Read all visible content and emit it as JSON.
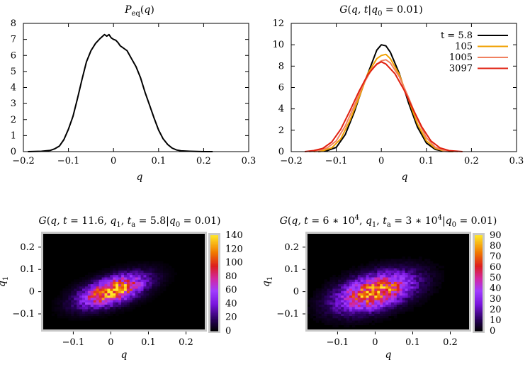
{
  "chart_data": [
    {
      "type": "line",
      "title": "P_eq(q)",
      "xlabel": "q",
      "ylabel": "",
      "xlim": [
        -0.2,
        0.3
      ],
      "ylim": [
        0,
        8
      ],
      "xticks": [
        "−0.2",
        "−0.1",
        "0",
        "0.1",
        "0.2",
        "0.3"
      ],
      "yticks": [
        "0",
        "1",
        "2",
        "3",
        "4",
        "5",
        "6",
        "7",
        "8"
      ],
      "grid": false,
      "series": [
        {
          "color": "#000000",
          "x": [
            -0.19,
            -0.16,
            -0.14,
            -0.13,
            -0.12,
            -0.11,
            -0.1,
            -0.09,
            -0.08,
            -0.07,
            -0.06,
            -0.05,
            -0.04,
            -0.03,
            -0.02,
            -0.015,
            -0.01,
            -0.005,
            0,
            0.005,
            0.01,
            0.015,
            0.02,
            0.03,
            0.04,
            0.05,
            0.06,
            0.07,
            0.08,
            0.09,
            0.1,
            0.11,
            0.12,
            0.13,
            0.14,
            0.15,
            0.17,
            0.2,
            0.22
          ],
          "y": [
            0,
            0.02,
            0.08,
            0.18,
            0.35,
            0.75,
            1.4,
            2.2,
            3.3,
            4.5,
            5.6,
            6.3,
            6.75,
            7.05,
            7.3,
            7.2,
            7.3,
            7.1,
            7.0,
            6.95,
            6.8,
            6.6,
            6.5,
            6.3,
            5.8,
            5.3,
            4.6,
            3.7,
            2.9,
            2.1,
            1.35,
            0.8,
            0.45,
            0.22,
            0.1,
            0.05,
            0.02,
            0,
            0
          ]
        }
      ]
    },
    {
      "type": "line",
      "title": "G(q,t|q_0 = 0.01)",
      "xlabel": "q",
      "ylabel": "",
      "xlim": [
        -0.2,
        0.3
      ],
      "ylim": [
        0,
        12
      ],
      "xticks": [
        "−0.2",
        "−0.1",
        "0",
        "0.1",
        "0.2",
        "0.3"
      ],
      "yticks": [
        "0",
        "2",
        "4",
        "6",
        "8",
        "10",
        "12"
      ],
      "legend": "top-right",
      "grid": false,
      "series": [
        {
          "name": "t = 5.8",
          "color": "#000000",
          "x": [
            -0.14,
            -0.12,
            -0.1,
            -0.08,
            -0.06,
            -0.04,
            -0.02,
            -0.01,
            0,
            0.01,
            0.02,
            0.04,
            0.06,
            0.08,
            0.1,
            0.12,
            0.14,
            0.16
          ],
          "y": [
            0,
            0.1,
            0.4,
            1.6,
            3.7,
            6.2,
            8.4,
            9.5,
            10.0,
            9.9,
            9.3,
            7.3,
            4.6,
            2.3,
            0.8,
            0.2,
            0.03,
            0
          ]
        },
        {
          "name": "105",
          "color": "#f0a000",
          "x": [
            -0.15,
            -0.13,
            -0.11,
            -0.09,
            -0.07,
            -0.05,
            -0.03,
            -0.01,
            0,
            0.01,
            0.02,
            0.04,
            0.06,
            0.08,
            0.1,
            0.12,
            0.14,
            0.16
          ],
          "y": [
            0,
            0.08,
            0.35,
            1.2,
            2.9,
            5.0,
            7.3,
            8.7,
            9.0,
            9.1,
            8.7,
            7.2,
            4.9,
            2.6,
            1.0,
            0.3,
            0.06,
            0
          ]
        },
        {
          "name": "1005",
          "color": "#f08060",
          "x": [
            -0.16,
            -0.14,
            -0.12,
            -0.1,
            -0.08,
            -0.06,
            -0.04,
            -0.02,
            0,
            0.01,
            0.02,
            0.04,
            0.06,
            0.08,
            0.1,
            0.12,
            0.14,
            0.17
          ],
          "y": [
            0,
            0.1,
            0.35,
            1.0,
            2.4,
            4.3,
            6.3,
            7.8,
            8.5,
            8.6,
            8.3,
            7.0,
            5.1,
            3.0,
            1.3,
            0.4,
            0.1,
            0
          ]
        },
        {
          "name": "3097",
          "color": "#e02010",
          "x": [
            -0.17,
            -0.15,
            -0.13,
            -0.11,
            -0.09,
            -0.07,
            -0.05,
            -0.03,
            -0.01,
            0,
            0.01,
            0.03,
            0.05,
            0.07,
            0.09,
            0.11,
            0.13,
            0.15,
            0.18
          ],
          "y": [
            0,
            0.1,
            0.3,
            0.9,
            2.1,
            3.8,
            5.6,
            7.2,
            8.2,
            8.4,
            8.2,
            7.3,
            5.8,
            4.0,
            2.3,
            1.0,
            0.35,
            0.1,
            0
          ]
        }
      ]
    },
    {
      "type": "heatmap",
      "title": "G(q, t = 11.6, q_1, t_a = 5.8|q_0 = 0.01)",
      "xlabel": "q",
      "ylabel": "q_1",
      "xlim": [
        -0.18,
        0.25
      ],
      "ylim": [
        -0.17,
        0.26
      ],
      "xticks": [
        "−0.1",
        "0",
        "0.1",
        "0.2"
      ],
      "yticks": [
        "−0.1",
        "0",
        "0.1",
        "0.2"
      ],
      "colorbar_ticks": [
        "0",
        "20",
        "40",
        "60",
        "80",
        "100",
        "120",
        "140"
      ],
      "colorbar_range": [
        0,
        140
      ],
      "peak_value": 130,
      "center": [
        0.005,
        0.005
      ],
      "sigma": [
        0.055,
        0.045
      ],
      "rho": 0.55
    },
    {
      "type": "heatmap",
      "title": "G(q, t = 6 * 10^4, q_1, t_a = 3 * 10^4|q_0 = 0.01)",
      "xlabel": "q",
      "ylabel": "q_1",
      "xlim": [
        -0.18,
        0.25
      ],
      "ylim": [
        -0.17,
        0.26
      ],
      "xticks": [
        "−0.1",
        "0",
        "0.1",
        "0.2"
      ],
      "yticks": [
        "−0.1",
        "0",
        "0.1",
        "0.2"
      ],
      "colorbar_ticks": [
        "0",
        "10",
        "20",
        "30",
        "40",
        "50",
        "60",
        "70",
        "80",
        "90"
      ],
      "colorbar_range": [
        0,
        90
      ],
      "peak_value": 78,
      "center": [
        0.0,
        0.0
      ],
      "sigma": [
        0.065,
        0.055
      ],
      "rho": 0.45
    }
  ]
}
